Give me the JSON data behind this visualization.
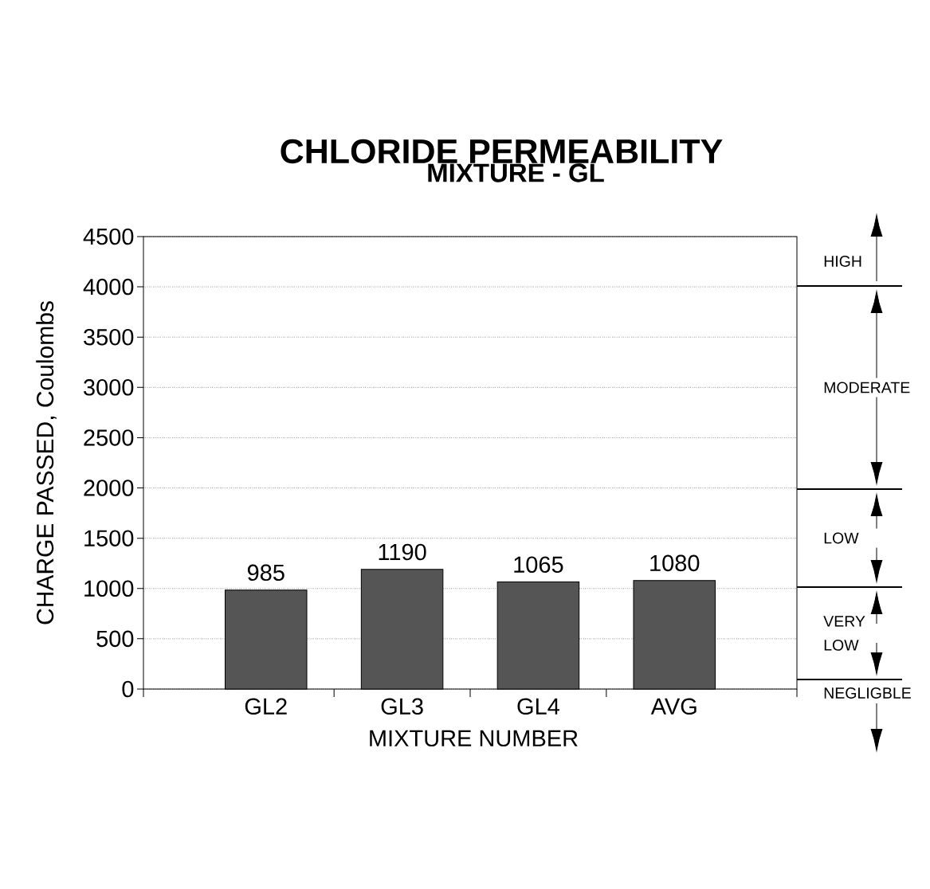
{
  "chart_data": {
    "type": "bar",
    "title": "CHLORIDE PERMEABILITY",
    "subtitle": "MIXTURE - GL",
    "xlabel": "MIXTURE NUMBER",
    "ylabel": "CHARGE PASSED, Coulombs",
    "categories": [
      "GL2",
      "GL3",
      "GL4",
      "AVG"
    ],
    "values": [
      985,
      1190,
      1065,
      1080
    ],
    "color": "#555555",
    "data_labels": true,
    "ylim": [
      0,
      4500
    ],
    "yticks": [
      0,
      500,
      1000,
      1500,
      2000,
      2500,
      3000,
      3500,
      4000,
      4500
    ],
    "grid": "y",
    "annotations": [
      "HIGH",
      "MODERATE",
      "LOW",
      "VERY LOW",
      "NEGLIGBLE"
    ]
  }
}
